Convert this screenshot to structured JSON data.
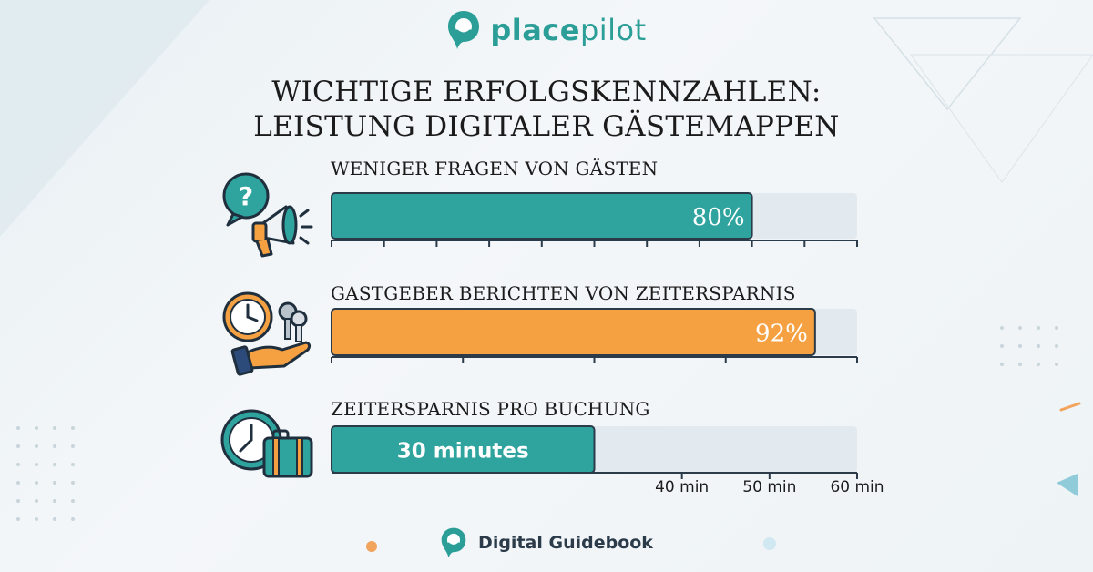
{
  "brand": {
    "part1": "place",
    "part2": "pilot"
  },
  "title_line1": "WICHTIGE ERFOLGSKENNZAHLEN:",
  "title_line2": "LEISTUNG DIGITALER GÄSTEMAPPEN",
  "footer": {
    "label": "Digital Guidebook"
  },
  "colors": {
    "teal": "#2fa49e",
    "orange": "#f5a142",
    "track": "#e2e9ef",
    "dark": "#2b3b4a"
  },
  "chart_data": [
    {
      "type": "bar",
      "label": "WENIGER FRAGEN VON GÄSTEN",
      "value": 80,
      "value_label": "80%",
      "max": 100,
      "color": "#2fa49e",
      "icon": "question-megaphone-icon"
    },
    {
      "type": "bar",
      "label": "GASTGEBER BERICHTEN VON ZEITERSPARNIS",
      "value": 92,
      "value_label": "92%",
      "max": 100,
      "color": "#f5a142",
      "icon": "clock-keys-hand-icon"
    },
    {
      "type": "bar",
      "label": "ZEITERSPARNIS PRO BUCHUNG",
      "value": 30,
      "value_label": "30 minutes",
      "max": 60,
      "color": "#2fa49e",
      "icon": "clock-suitcase-icon",
      "tick_labels": [
        "40 min",
        "50 min",
        "60 min"
      ],
      "tick_values": [
        40,
        50,
        60
      ]
    }
  ]
}
